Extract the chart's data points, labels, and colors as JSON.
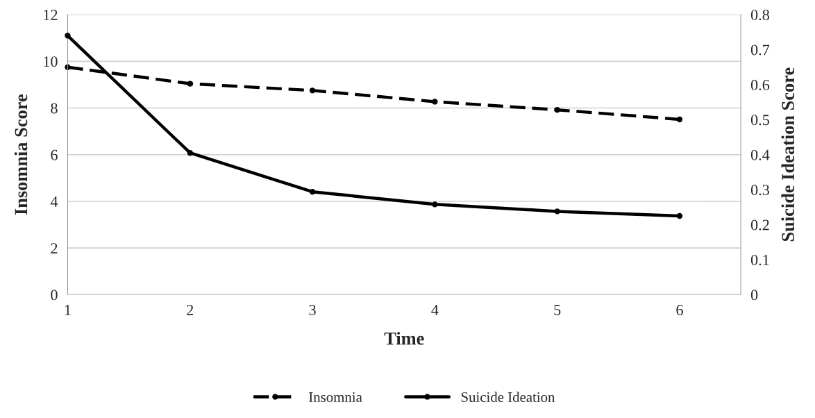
{
  "chart_data": {
    "type": "line",
    "xlabel": "Time",
    "ylabel": "Insomnia Score",
    "y2label": "Suicide Ideation Score",
    "x": [
      1,
      2,
      3,
      4,
      5,
      6
    ],
    "series": [
      {
        "name": "Insomnia",
        "color": "#000000",
        "values": [
          9.75,
          9.04,
          8.75,
          8.27,
          7.92,
          7.51
        ],
        "line_style": "dashed"
      },
      {
        "name": "Suicide Ideation",
        "color": "#000000",
        "values": [
          0.74,
          0.405,
          0.294,
          0.258,
          0.238,
          0.225
        ],
        "axis": "y2",
        "line_style": "solid"
      }
    ],
    "xlim": [
      1,
      6.5
    ],
    "xticks": [
      1,
      2,
      3,
      4,
      5,
      6
    ],
    "ylim": [
      0,
      12
    ],
    "yticks": [
      0,
      2,
      4,
      6,
      8,
      10,
      12
    ],
    "y2lim": [
      0,
      0.8
    ],
    "y2ticks": [
      0,
      0.1,
      0.2,
      0.3,
      0.4,
      0.5,
      0.6,
      0.7,
      0.8
    ],
    "grid": "y",
    "legend": "bottom",
    "marker": "circle"
  }
}
